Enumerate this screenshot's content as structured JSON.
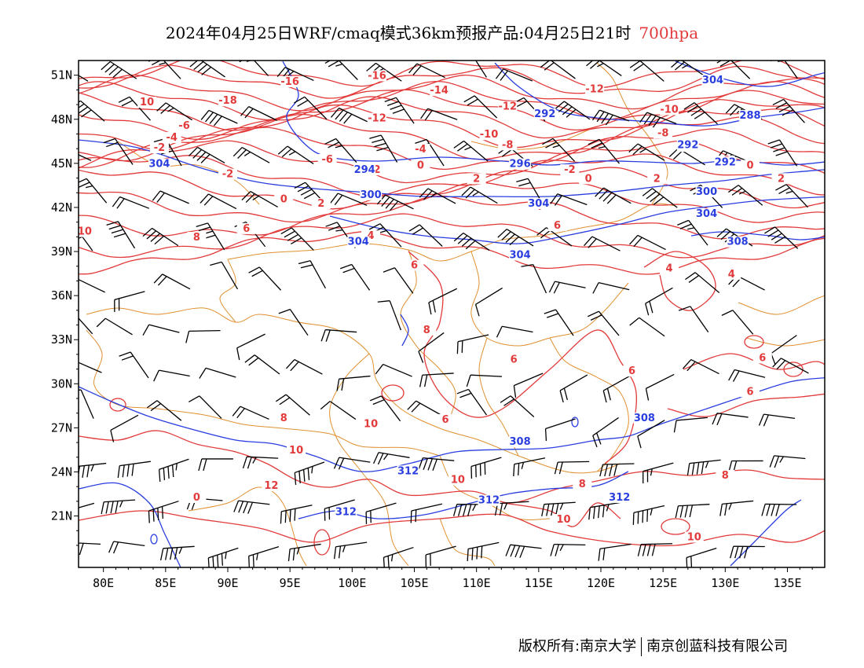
{
  "title": {
    "main": "2024年04月25日WRF/cmaq模式36km预报产品:04月25日21时",
    "level": "700hpa"
  },
  "colors": {
    "temperature": "#e23a3a",
    "geopotential": "#2a3ee0",
    "wind": "#000000",
    "boundaries": "#e09030"
  },
  "axes": {
    "lon_labels": [
      "80E",
      "85E",
      "90E",
      "95E",
      "100E",
      "105E",
      "110E",
      "115E",
      "120E",
      "125E",
      "130E",
      "135E"
    ],
    "lat_labels": [
      "51N",
      "48N",
      "45N",
      "42N",
      "39N",
      "36N",
      "33N",
      "30N",
      "27N",
      "24N",
      "21N"
    ],
    "lon_range": [
      78,
      138
    ],
    "lat_range": [
      17.5,
      52
    ]
  },
  "temperature_labels": [
    {
      "text": "-16",
      "lon": 95,
      "lat": 50.4
    },
    {
      "text": "-16",
      "lon": 102,
      "lat": 50.8
    },
    {
      "text": "-14",
      "lon": 107,
      "lat": 49.8
    },
    {
      "text": "-12",
      "lon": 119.5,
      "lat": 49.9
    },
    {
      "text": "-18",
      "lon": 90,
      "lat": 49.1
    },
    {
      "text": "10",
      "lon": 83.5,
      "lat": 49
    },
    {
      "text": "-12",
      "lon": 112.5,
      "lat": 48.7
    },
    {
      "text": "-10",
      "lon": 125.5,
      "lat": 48.5
    },
    {
      "text": "-12",
      "lon": 102,
      "lat": 47.9
    },
    {
      "text": "-6",
      "lon": 86.5,
      "lat": 47.4
    },
    {
      "text": "-10",
      "lon": 111,
      "lat": 46.8
    },
    {
      "text": "-8",
      "lon": 125,
      "lat": 46.9
    },
    {
      "text": "-4",
      "lon": 85.5,
      "lat": 46.6
    },
    {
      "text": "-8",
      "lon": 112.5,
      "lat": 46.1
    },
    {
      "text": "-4",
      "lon": 127,
      "lat": 46
    },
    {
      "text": "-2",
      "lon": 84.5,
      "lat": 45.9
    },
    {
      "text": "-4",
      "lon": 105.5,
      "lat": 45.8
    },
    {
      "text": "-6",
      "lon": 98,
      "lat": 45.1
    },
    {
      "text": "-2",
      "lon": 130,
      "lat": 45
    },
    {
      "text": "0",
      "lon": 132,
      "lat": 44.7
    },
    {
      "text": "0",
      "lon": 105.5,
      "lat": 44.7
    },
    {
      "text": "2",
      "lon": 102,
      "lat": 44.4
    },
    {
      "text": "-2",
      "lon": 90,
      "lat": 44.1
    },
    {
      "text": "-2",
      "lon": 117.5,
      "lat": 44.4
    },
    {
      "text": "0",
      "lon": 119,
      "lat": 43.8
    },
    {
      "text": "2",
      "lon": 110,
      "lat": 43.8
    },
    {
      "text": "2",
      "lon": 124.5,
      "lat": 43.8
    },
    {
      "text": "2",
      "lon": 134.5,
      "lat": 43.8
    },
    {
      "text": "0",
      "lon": 94.5,
      "lat": 42.4
    },
    {
      "text": "2",
      "lon": 97.5,
      "lat": 42.1
    },
    {
      "text": "4",
      "lon": 115,
      "lat": 41.9
    },
    {
      "text": "10",
      "lon": 78.5,
      "lat": 40.2
    },
    {
      "text": "8",
      "lon": 87.5,
      "lat": 39.8
    },
    {
      "text": "6",
      "lon": 91.5,
      "lat": 40.4
    },
    {
      "text": "4",
      "lon": 101.5,
      "lat": 39.9
    },
    {
      "text": "6",
      "lon": 116.5,
      "lat": 40.6
    },
    {
      "text": "6",
      "lon": 105,
      "lat": 37.9
    },
    {
      "text": "4",
      "lon": 125.5,
      "lat": 37.7
    },
    {
      "text": "4",
      "lon": 130.5,
      "lat": 37.3
    },
    {
      "text": "8",
      "lon": 106,
      "lat": 33.5
    },
    {
      "text": "6",
      "lon": 133,
      "lat": 31.6
    },
    {
      "text": "6",
      "lon": 113,
      "lat": 31.5
    },
    {
      "text": "6",
      "lon": 122.5,
      "lat": 30.7
    },
    {
      "text": "6",
      "lon": 132,
      "lat": 29.3
    },
    {
      "text": "8",
      "lon": 94.5,
      "lat": 27.5
    },
    {
      "text": "10",
      "lon": 101.5,
      "lat": 27.1
    },
    {
      "text": "6",
      "lon": 107.5,
      "lat": 27.4
    },
    {
      "text": "10",
      "lon": 95.5,
      "lat": 25.3
    },
    {
      "text": "10",
      "lon": 108.5,
      "lat": 23.3
    },
    {
      "text": "12",
      "lon": 93.5,
      "lat": 22.9
    },
    {
      "text": "8",
      "lon": 118.5,
      "lat": 23
    },
    {
      "text": "8",
      "lon": 130,
      "lat": 23.6
    },
    {
      "text": "0",
      "lon": 87.5,
      "lat": 22.1
    },
    {
      "text": "10",
      "lon": 117,
      "lat": 20.6
    },
    {
      "text": "10",
      "lon": 127.5,
      "lat": 19.4
    }
  ],
  "height_labels": [
    {
      "text": "304",
      "lon": 129,
      "lat": 50.5
    },
    {
      "text": "292",
      "lon": 115.5,
      "lat": 48.2
    },
    {
      "text": "288",
      "lon": 132,
      "lat": 48.1
    },
    {
      "text": "292",
      "lon": 127,
      "lat": 46.1
    },
    {
      "text": "292",
      "lon": 130,
      "lat": 44.9
    },
    {
      "text": "304",
      "lon": 84.5,
      "lat": 44.8
    },
    {
      "text": "294",
      "lon": 101,
      "lat": 44.4
    },
    {
      "text": "296",
      "lon": 113.5,
      "lat": 44.8
    },
    {
      "text": "300",
      "lon": 101.5,
      "lat": 42.7
    },
    {
      "text": "300",
      "lon": 128.5,
      "lat": 42.9
    },
    {
      "text": "304",
      "lon": 115,
      "lat": 42.1
    },
    {
      "text": "304",
      "lon": 128.5,
      "lat": 41.4
    },
    {
      "text": "304",
      "lon": 100.5,
      "lat": 39.5
    },
    {
      "text": "308",
      "lon": 131,
      "lat": 39.5
    },
    {
      "text": "304",
      "lon": 113.5,
      "lat": 38.6
    },
    {
      "text": "308",
      "lon": 123.5,
      "lat": 27.5
    },
    {
      "text": "308",
      "lon": 113.5,
      "lat": 25.9
    },
    {
      "text": "312",
      "lon": 104.5,
      "lat": 23.9
    },
    {
      "text": "312",
      "lon": 111,
      "lat": 21.9
    },
    {
      "text": "312",
      "lon": 121.5,
      "lat": 22.1
    },
    {
      "text": "312",
      "lon": 99.5,
      "lat": 21.1
    }
  ],
  "credit": {
    "left": "版权所有:南京大学",
    "right": "南京创蓝科技有限公司"
  }
}
